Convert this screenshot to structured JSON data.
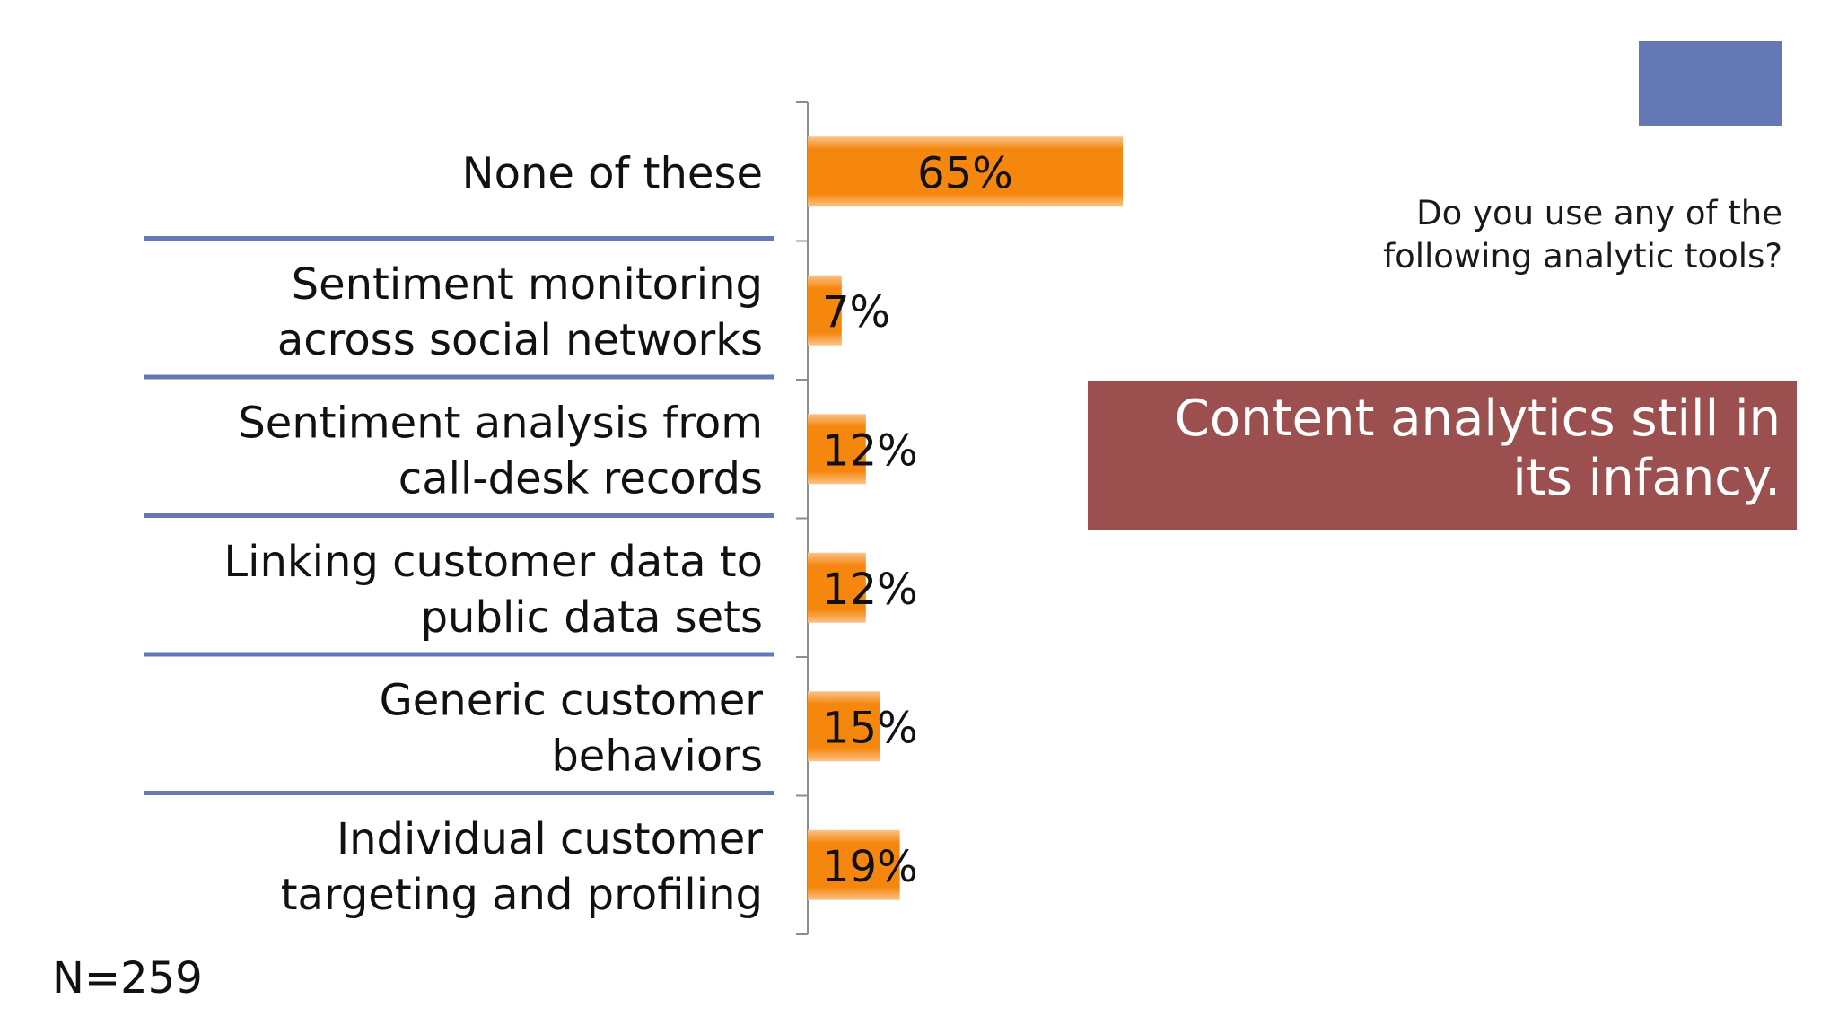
{
  "slide": {
    "question": "Do you use any of the following analytic tools?",
    "takeaway": "Content analytics still in its infancy.",
    "sample_size": "N=259"
  },
  "colors": {
    "bar": "#f5870e",
    "bar_edge": "#fbc38a",
    "separator": "#6478b5",
    "axis": "#8c8c8c",
    "takeaway_bg": "#9b4f4f",
    "accent_square": "#6478b5"
  },
  "chart_data": {
    "type": "bar",
    "orientation": "horizontal",
    "categories": [
      "None of these",
      "Sentiment monitoring across social networks",
      "Sentiment analysis from call-desk records",
      "Linking customer data to public data sets",
      "Generic customer behaviors",
      "Individual customer targeting and profiling"
    ],
    "category_lines": [
      [
        "None of these"
      ],
      [
        "Sentiment monitoring",
        "across social networks"
      ],
      [
        "Sentiment analysis from",
        "call-desk records"
      ],
      [
        "Linking customer data to",
        "public data sets"
      ],
      [
        "Generic customer",
        "behaviors"
      ],
      [
        "Individual customer",
        "targeting and profiling"
      ]
    ],
    "values": [
      65,
      7,
      12,
      12,
      15,
      19
    ],
    "data_labels": [
      "65%",
      "7%",
      "12%",
      "12%",
      "15%",
      "19%"
    ],
    "unit": "%",
    "xlim": [
      0,
      100
    ],
    "grid": false,
    "legend": "none"
  }
}
